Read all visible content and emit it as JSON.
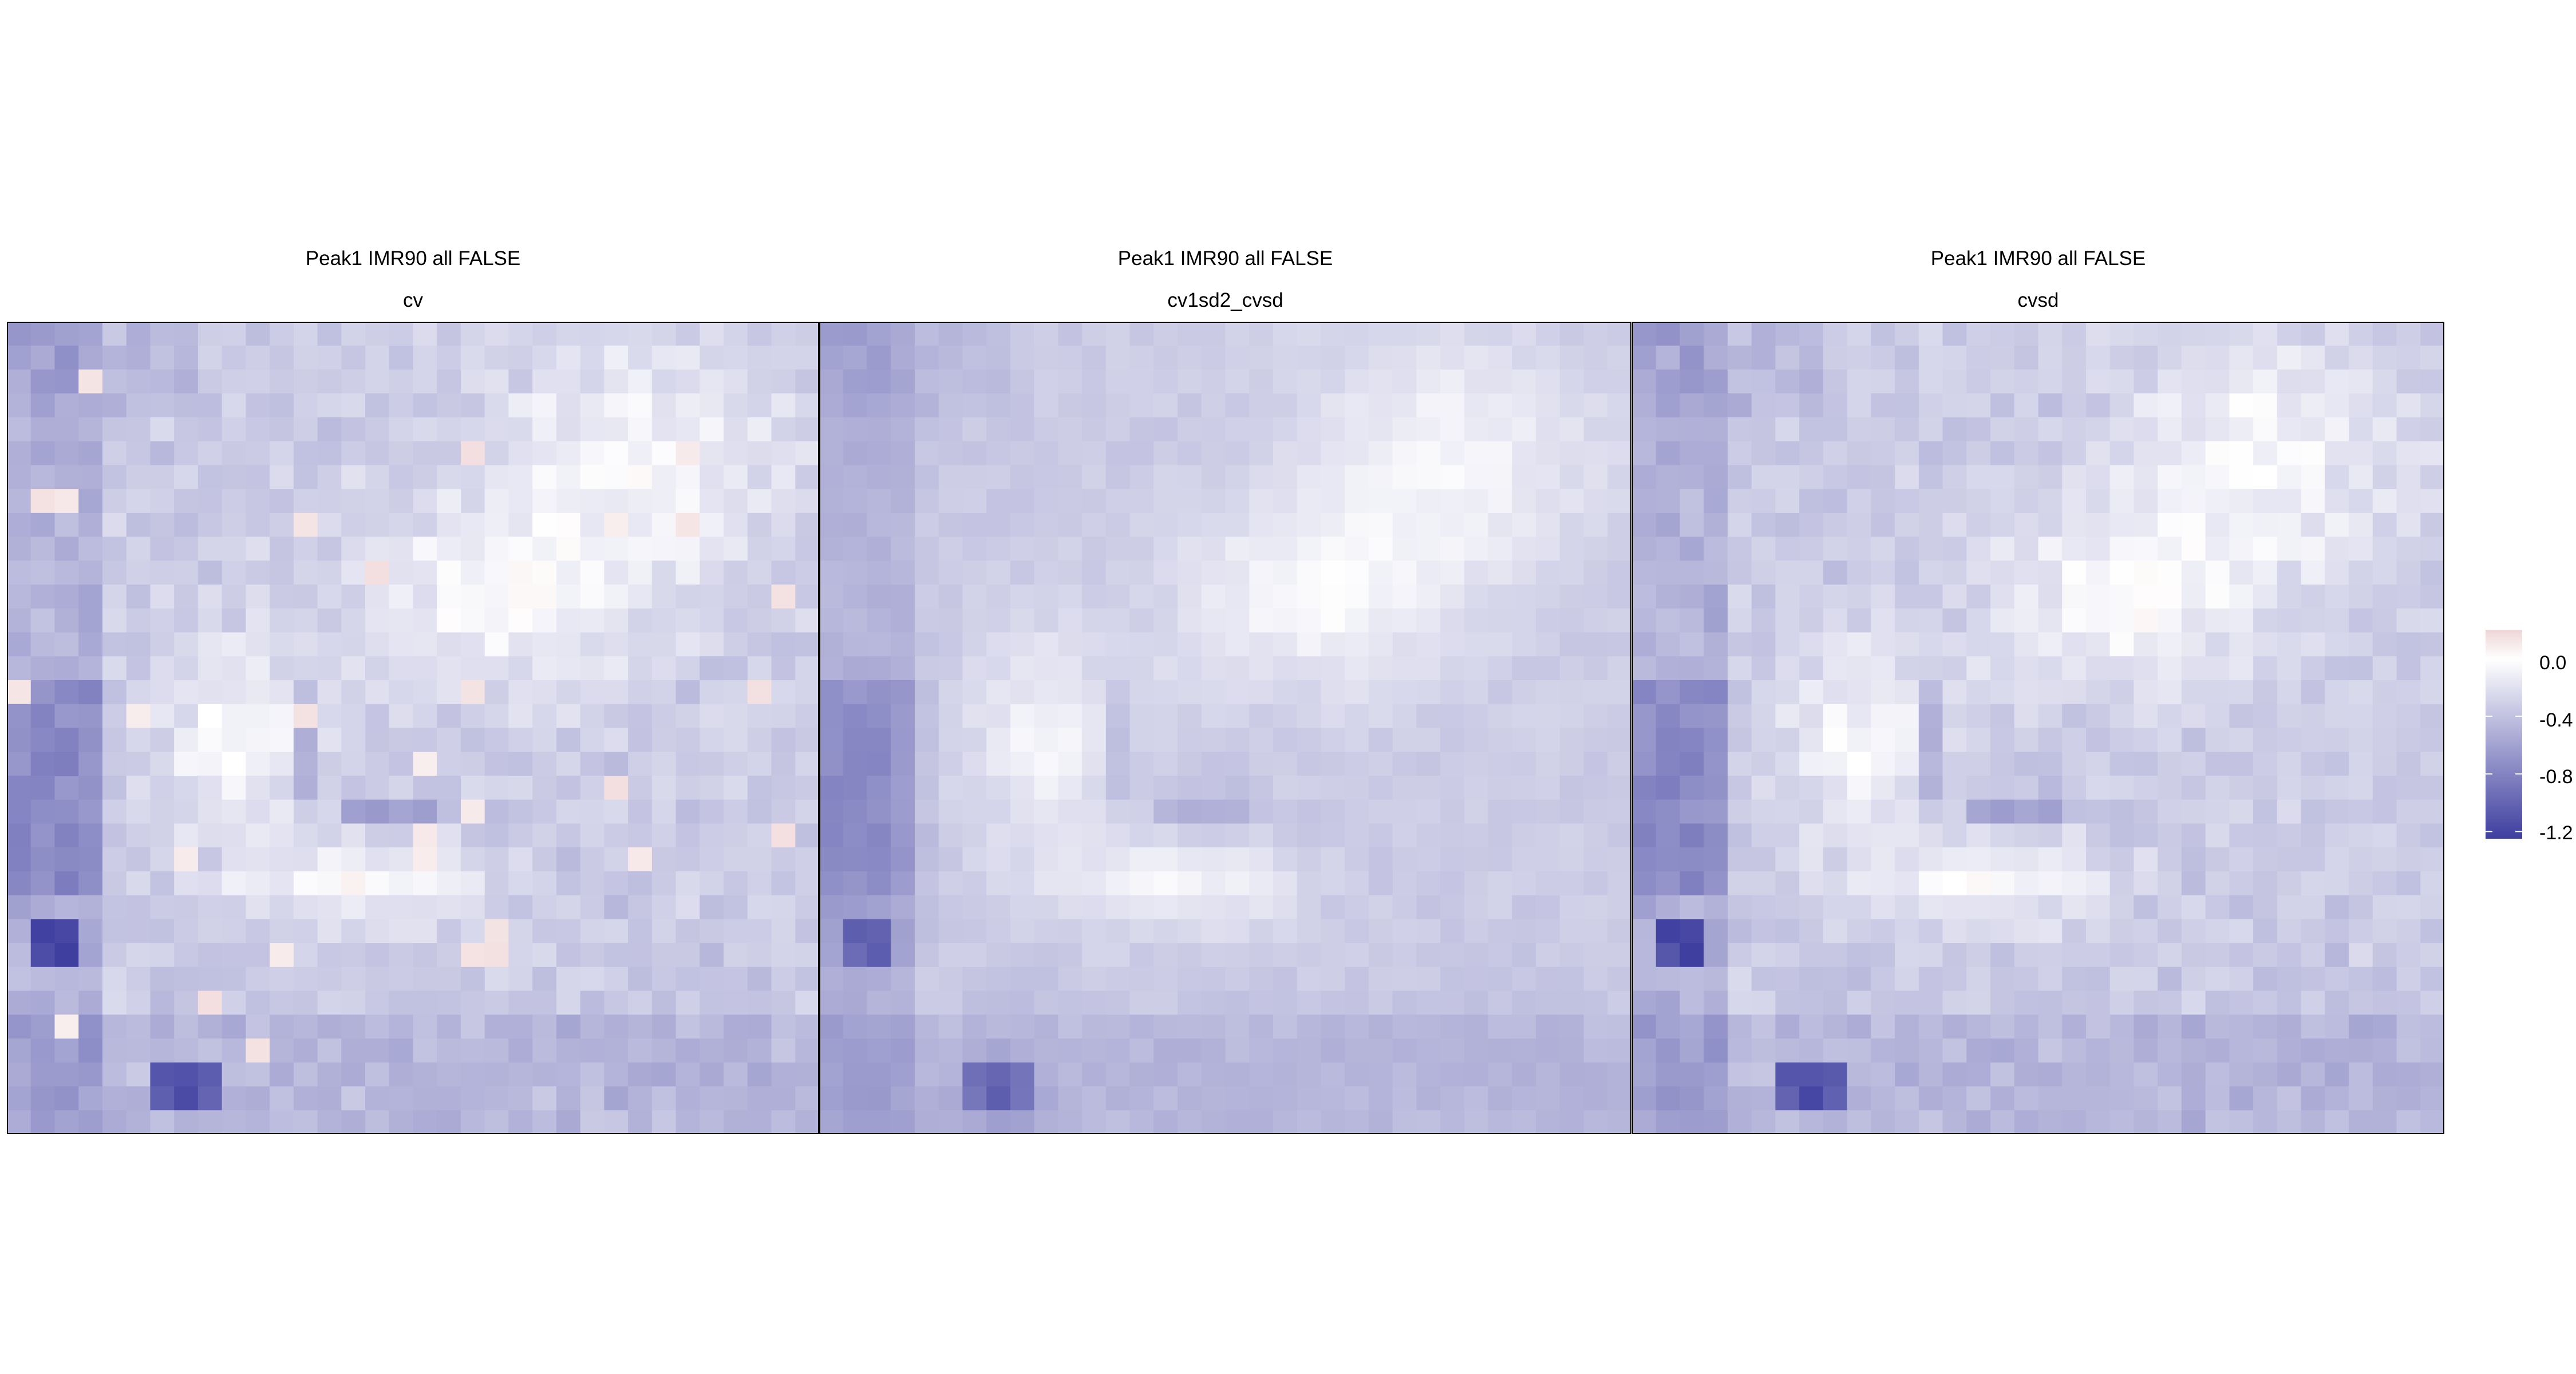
{
  "chart_data": [
    {
      "type": "heatmap",
      "title": "Peak1 IMR90 all FALSE",
      "subtitle": "cv",
      "grid": "34 x 34 tiles",
      "colorscale": {
        "low": "#3F3FA0",
        "mid": "#FFFFFF",
        "high": "#F0D7D7",
        "midpoint": 0.0,
        "range": [
          -1.25,
          0.2
        ]
      },
      "legend": {
        "ticks": [
          "0.0",
          "-0.4",
          "-0.8",
          "-1.2"
        ],
        "tick_values": [
          0.0,
          -0.4,
          -0.8,
          -1.2
        ],
        "placement": "right"
      }
    },
    {
      "type": "heatmap",
      "title": "Peak1 IMR90 all FALSE",
      "subtitle": "cv1sd2_cvsd",
      "grid": "34 x 34 tiles",
      "colorscale": {
        "low": "#3F3FA0",
        "mid": "#FFFFFF",
        "high": "#F0D7D7",
        "midpoint": 0.0,
        "range": [
          -1.25,
          0.2
        ]
      }
    },
    {
      "type": "heatmap",
      "title": "Peak1 IMR90 all FALSE",
      "subtitle": "cvsd",
      "grid": "34 x 34 tiles",
      "colorscale": {
        "low": "#3F3FA0",
        "mid": "#FFFFFF",
        "high": "#F0D7D7",
        "midpoint": 0.0,
        "range": [
          -1.25,
          0.2
        ]
      }
    }
  ],
  "panels": [
    {
      "title": "Peak1 IMR90 all FALSE",
      "subtitle": "cv"
    },
    {
      "title": "Peak1 IMR90 all FALSE",
      "subtitle": "cv1sd2_cvsd"
    },
    {
      "title": "Peak1 IMR90 all FALSE",
      "subtitle": "cvsd"
    }
  ],
  "legend": {
    "labels": [
      "0.0",
      "-0.4",
      "-0.8",
      "-1.2"
    ]
  },
  "colors": {
    "low": "#3F3FA0",
    "mid": "#FFFFFF",
    "high": "#F0D7D7",
    "frame": "#000000"
  }
}
